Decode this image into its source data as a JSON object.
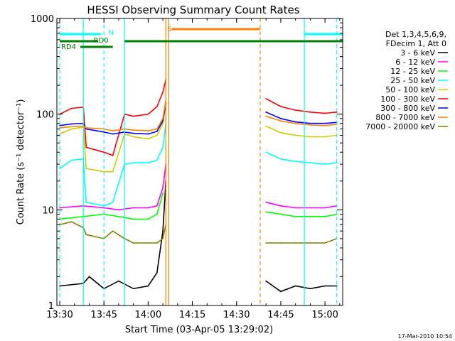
{
  "chart_data": {
    "type": "line",
    "title": "HESSI Observing Summary Count Rates",
    "xlabel": "Start Time (03-Apr-05 13:29:02)",
    "ylabel": "Count Rate (s⁻¹ detector⁻¹)",
    "x_ticks": [
      "13:30",
      "13:45",
      "14:00",
      "14:15",
      "14:30",
      "14:45",
      "15:00"
    ],
    "y_ticks": [
      "1",
      "10",
      "100",
      "1000"
    ],
    "y_scale": "log",
    "ylim": [
      1,
      1000
    ],
    "xlim": [
      "13:29:02",
      "15:06"
    ],
    "grid": false,
    "legend_position": "right",
    "timestamp": "17-Mar-2010 10:54",
    "legend_header": [
      "Det 1,3,4,5,6,9,",
      "FDecim 1, Att 0"
    ],
    "flags": [
      {
        "label": "N",
        "color": "#00ffff"
      },
      {
        "label": "S",
        "color": "#ff8000"
      },
      {
        "label": "RD0",
        "color": "#008000"
      },
      {
        "label": "RD4",
        "color": "#008000"
      }
    ],
    "series": [
      {
        "name": "3 - 6 keV",
        "color": "#000000",
        "x": [
          "13:30",
          "13:38",
          "13:40",
          "13:45",
          "13:50",
          "13:55",
          "14:00",
          "14:03",
          "14:05",
          "14:06",
          "14:40",
          "14:45",
          "14:50",
          "14:55",
          "15:00",
          "15:04"
        ],
        "values": [
          1.6,
          1.7,
          2.0,
          1.5,
          1.8,
          1.5,
          1.6,
          2.2,
          6,
          20,
          1.8,
          1.4,
          1.6,
          1.5,
          1.6,
          1.6
        ]
      },
      {
        "name": "6 - 12 keV",
        "color": "#ff00ff",
        "x": [
          "13:30",
          "13:38",
          "13:45",
          "13:50",
          "13:55",
          "14:00",
          "14:03",
          "14:05",
          "14:06",
          "14:40",
          "14:45",
          "14:50",
          "14:55",
          "15:00",
          "15:04"
        ],
        "values": [
          10.5,
          11,
          10.5,
          10,
          10.5,
          10.5,
          11,
          17,
          30,
          12,
          11,
          10.5,
          10.5,
          10.5,
          11
        ]
      },
      {
        "name": "12 - 25 keV",
        "color": "#00ff00",
        "x": [
          "13:30",
          "13:38",
          "13:45",
          "13:50",
          "13:55",
          "14:00",
          "14:03",
          "14:05",
          "14:40",
          "14:45",
          "14:50",
          "14:55",
          "15:00",
          "15:04"
        ],
        "values": [
          8,
          8.5,
          9,
          8.5,
          8,
          8,
          9,
          15,
          9.5,
          9,
          8.5,
          8.5,
          8.5,
          9
        ]
      },
      {
        "name": "25 - 50 keV",
        "color": "#00ffff",
        "x": [
          "13:30",
          "13:34",
          "13:38",
          "13:39",
          "13:45",
          "13:48",
          "13:52",
          "13:55",
          "14:00",
          "14:03",
          "14:05",
          "14:06",
          "14:40",
          "14:45",
          "14:50",
          "14:55",
          "15:00",
          "15:04"
        ],
        "values": [
          27,
          33,
          34,
          12,
          11,
          12,
          30,
          31,
          31,
          33,
          45,
          80,
          40,
          34,
          32,
          31,
          30,
          31
        ]
      },
      {
        "name": "50 - 100 keV",
        "color": "#d4c800",
        "x": [
          "13:30",
          "13:34",
          "13:38",
          "13:39",
          "13:45",
          "13:48",
          "13:52",
          "13:55",
          "14:00",
          "14:03",
          "14:05",
          "14:06",
          "14:40",
          "14:45",
          "14:50",
          "14:55",
          "15:00",
          "15:04"
        ],
        "values": [
          62,
          70,
          73,
          27,
          25,
          25,
          62,
          58,
          55,
          60,
          80,
          130,
          75,
          64,
          60,
          58,
          58,
          60
        ]
      },
      {
        "name": "100 - 300 keV",
        "color": "#ff0000",
        "x": [
          "13:30",
          "13:34",
          "13:38",
          "13:39",
          "13:45",
          "13:48",
          "13:52",
          "13:55",
          "14:00",
          "14:03",
          "14:05",
          "14:06",
          "14:40",
          "14:45",
          "14:50",
          "14:55",
          "15:00",
          "15:04"
        ],
        "values": [
          100,
          115,
          118,
          45,
          40,
          37,
          100,
          95,
          100,
          120,
          170,
          230,
          145,
          120,
          110,
          105,
          102,
          105
        ]
      },
      {
        "name": "300 - 800 keV",
        "color": "#0000ff",
        "x": [
          "13:30",
          "13:34",
          "13:38",
          "13:39",
          "13:45",
          "13:48",
          "13:52",
          "13:55",
          "14:00",
          "14:03",
          "14:05",
          "14:06",
          "14:40",
          "14:45",
          "14:50",
          "14:55",
          "15:00",
          "15:04"
        ],
        "values": [
          76,
          79,
          80,
          70,
          65,
          62,
          65,
          63,
          62,
          66,
          85,
          130,
          105,
          90,
          83,
          80,
          80,
          82
        ]
      },
      {
        "name": "800 - 7000 keV",
        "color": "#ff8000",
        "x": [
          "13:30",
          "13:34",
          "13:38",
          "13:39",
          "13:45",
          "13:48",
          "13:52",
          "13:55",
          "14:00",
          "14:03",
          "14:05",
          "14:06",
          "14:40",
          "14:45",
          "14:50",
          "14:55",
          "15:00",
          "15:04"
        ],
        "values": [
          72,
          74,
          75,
          72,
          70,
          67,
          70,
          68,
          67,
          70,
          90,
          140,
          95,
          85,
          80,
          77,
          76,
          78
        ]
      },
      {
        "name": "7000 - 20000 keV",
        "color": "#808000",
        "x": [
          "13:30",
          "13:34",
          "13:38",
          "13:39",
          "13:45",
          "13:48",
          "13:52",
          "13:55",
          "14:00",
          "14:03",
          "14:05",
          "14:06",
          "14:40",
          "14:45",
          "14:50",
          "14:55",
          "15:00",
          "15:04"
        ],
        "values": [
          7,
          7.5,
          6.5,
          5.5,
          5,
          6,
          5,
          4.5,
          4.5,
          4.5,
          5,
          7,
          4.5,
          4.5,
          4.5,
          4.5,
          4.5,
          5
        ]
      }
    ]
  }
}
